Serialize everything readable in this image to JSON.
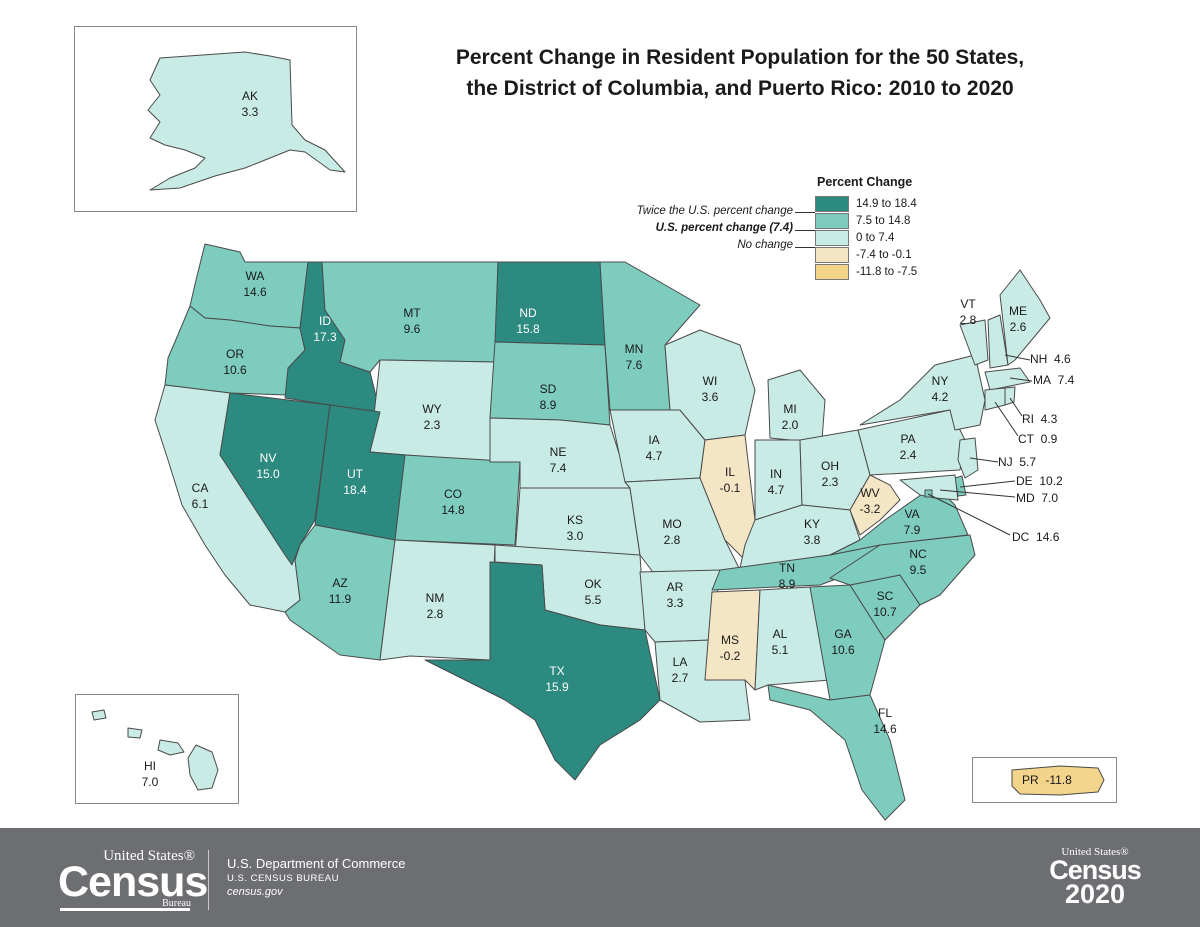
{
  "title": {
    "line1": "Percent Change in Resident Population for the 50 States,",
    "line2": "the District of Columbia, and Puerto Rico: 2010 to 2020"
  },
  "colors": {
    "class1": "#2c8a80",
    "class2": "#7dccbe",
    "class3": "#c9ebe5",
    "class4": "#f4e6c4",
    "class5": "#f2d48a",
    "border": "#4a4a4a",
    "footer": "#6d6e71"
  },
  "legend": {
    "title": "Percent Change",
    "classes": [
      {
        "label": "14.9 to 18.4"
      },
      {
        "label": "7.5 to 14.8"
      },
      {
        "label": "0 to 7.4"
      },
      {
        "label": "-7.4 to -0.1"
      },
      {
        "label": "-11.8 to -7.5"
      }
    ],
    "notes": {
      "twice": "Twice the U.S. percent change",
      "us": "U.S. percent change (7.4)",
      "none": "No change"
    }
  },
  "states": {
    "AK": {
      "abbr": "AK",
      "value": "3.3"
    },
    "HI": {
      "abbr": "HI",
      "value": "7.0"
    },
    "PR": {
      "abbr": "PR",
      "value": "-11.8"
    },
    "WA": {
      "abbr": "WA",
      "value": "14.6"
    },
    "OR": {
      "abbr": "OR",
      "value": "10.6"
    },
    "CA": {
      "abbr": "CA",
      "value": "6.1"
    },
    "ID": {
      "abbr": "ID",
      "value": "17.3"
    },
    "NV": {
      "abbr": "NV",
      "value": "15.0"
    },
    "MT": {
      "abbr": "MT",
      "value": "9.6"
    },
    "WY": {
      "abbr": "WY",
      "value": "2.3"
    },
    "UT": {
      "abbr": "UT",
      "value": "18.4"
    },
    "AZ": {
      "abbr": "AZ",
      "value": "11.9"
    },
    "CO": {
      "abbr": "CO",
      "value": "14.8"
    },
    "NM": {
      "abbr": "NM",
      "value": "2.8"
    },
    "ND": {
      "abbr": "ND",
      "value": "15.8"
    },
    "SD": {
      "abbr": "SD",
      "value": "8.9"
    },
    "NE": {
      "abbr": "NE",
      "value": "7.4"
    },
    "KS": {
      "abbr": "KS",
      "value": "3.0"
    },
    "OK": {
      "abbr": "OK",
      "value": "5.5"
    },
    "TX": {
      "abbr": "TX",
      "value": "15.9"
    },
    "MN": {
      "abbr": "MN",
      "value": "7.6"
    },
    "IA": {
      "abbr": "IA",
      "value": "4.7"
    },
    "MO": {
      "abbr": "MO",
      "value": "2.8"
    },
    "AR": {
      "abbr": "AR",
      "value": "3.3"
    },
    "LA": {
      "abbr": "LA",
      "value": "2.7"
    },
    "WI": {
      "abbr": "WI",
      "value": "3.6"
    },
    "IL": {
      "abbr": "IL",
      "value": "-0.1"
    },
    "MS": {
      "abbr": "MS",
      "value": "-0.2"
    },
    "MI": {
      "abbr": "MI",
      "value": "2.0"
    },
    "IN": {
      "abbr": "IN",
      "value": "4.7"
    },
    "KY": {
      "abbr": "KY",
      "value": "3.8"
    },
    "TN": {
      "abbr": "TN",
      "value": "8.9"
    },
    "AL": {
      "abbr": "AL",
      "value": "5.1"
    },
    "OH": {
      "abbr": "OH",
      "value": "2.3"
    },
    "WV": {
      "abbr": "WV",
      "value": "-3.2"
    },
    "VA": {
      "abbr": "VA",
      "value": "7.9"
    },
    "NC": {
      "abbr": "NC",
      "value": "9.5"
    },
    "SC": {
      "abbr": "SC",
      "value": "10.7"
    },
    "GA": {
      "abbr": "GA",
      "value": "10.6"
    },
    "FL": {
      "abbr": "FL",
      "value": "14.6"
    },
    "PA": {
      "abbr": "PA",
      "value": "2.4"
    },
    "NY": {
      "abbr": "NY",
      "value": "4.2"
    },
    "VT": {
      "abbr": "VT",
      "value": "2.8"
    },
    "ME": {
      "abbr": "ME",
      "value": "2.6"
    },
    "NH": {
      "abbr": "NH",
      "value": "4.6"
    },
    "MA": {
      "abbr": "MA",
      "value": "7.4"
    },
    "RI": {
      "abbr": "RI",
      "value": "4.3"
    },
    "CT": {
      "abbr": "CT",
      "value": "0.9"
    },
    "NJ": {
      "abbr": "NJ",
      "value": "5.7"
    },
    "DE": {
      "abbr": "DE",
      "value": "10.2"
    },
    "MD": {
      "abbr": "MD",
      "value": "7.0"
    },
    "DC": {
      "abbr": "DC",
      "value": "14.6"
    }
  },
  "footer": {
    "logo_us": "United States®",
    "logo_census": "Census",
    "logo_bureau": "Bureau",
    "dept_line1": "U.S. Department of Commerce",
    "dept_line2": "U.S. CENSUS BUREAU",
    "dept_line3": "census.gov",
    "c2020_us": "United States®",
    "c2020_census": "Census",
    "c2020_year": "2020"
  }
}
